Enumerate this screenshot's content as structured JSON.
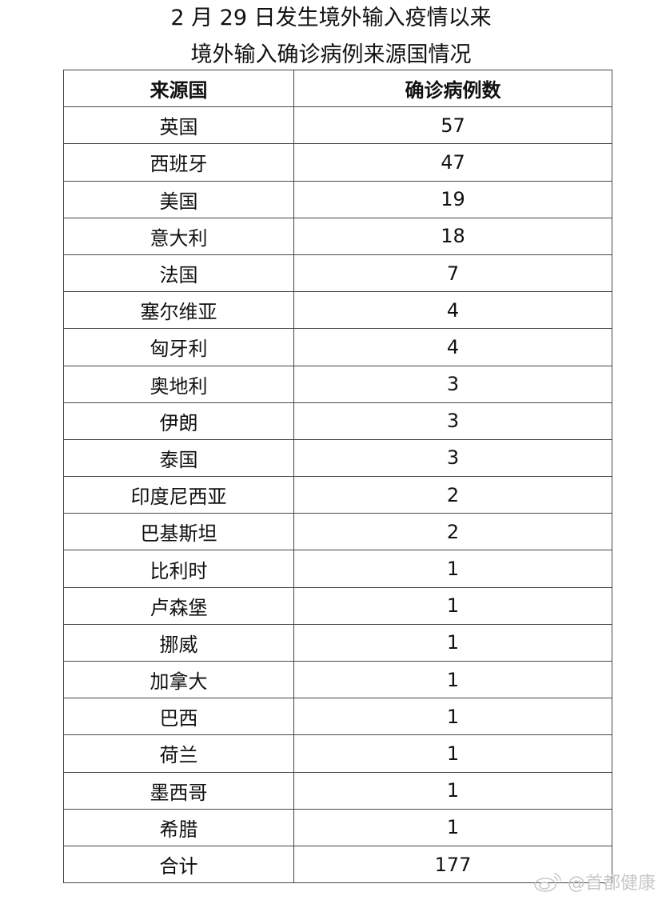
{
  "title_line1": "2 月 29 日发生境外输入疫情以来",
  "title_line2": "境外输入确诊病例来源国情况",
  "table": {
    "headers": [
      "来源国",
      "确诊病例数"
    ],
    "rows": [
      [
        "英国",
        "57"
      ],
      [
        "西班牙",
        "47"
      ],
      [
        "美国",
        "19"
      ],
      [
        "意大利",
        "18"
      ],
      [
        "法国",
        "7"
      ],
      [
        "塞尔维亚",
        "4"
      ],
      [
        "匈牙利",
        "4"
      ],
      [
        "奥地利",
        "3"
      ],
      [
        "伊朗",
        "3"
      ],
      [
        "泰国",
        "3"
      ],
      [
        "印度尼西亚",
        "2"
      ],
      [
        "巴基斯坦",
        "2"
      ],
      [
        "比利时",
        "1"
      ],
      [
        "卢森堡",
        "1"
      ],
      [
        "挪威",
        "1"
      ],
      [
        "加拿大",
        "1"
      ],
      [
        "巴西",
        "1"
      ],
      [
        "荷兰",
        "1"
      ],
      [
        "墨西哥",
        "1"
      ],
      [
        "希腊",
        "1"
      ],
      [
        "合计",
        "177"
      ]
    ]
  },
  "watermark": {
    "text": "@首都健康",
    "icon": "weibo-icon"
  }
}
